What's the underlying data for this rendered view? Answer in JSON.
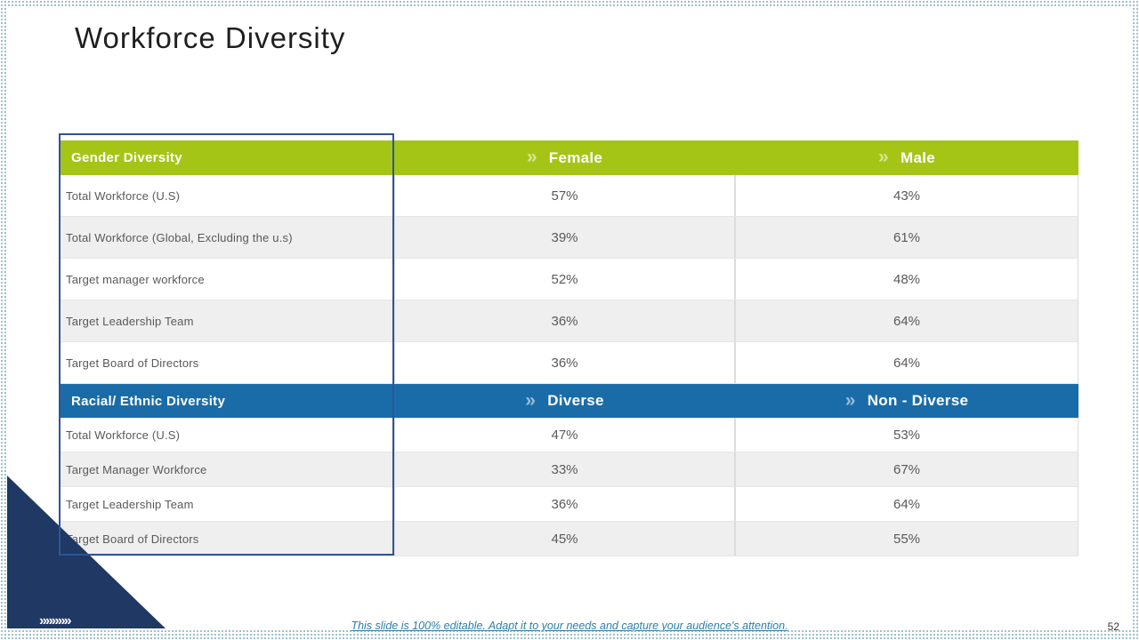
{
  "slide": {
    "title": "Workforce Diversity",
    "footer_note": "This slide is 100% editable. Adapt it to your needs and capture your audience's attention.",
    "page_number": "52"
  },
  "icons": {
    "chevron": "»",
    "corner_chevrons": "»»»»»"
  },
  "colors": {
    "gender_header": "#a5c516",
    "racial_header": "#1a6ca8",
    "corner_triangle": "#1f3864",
    "left_column_outline": "#2f5496",
    "row_stripe": "#efefef",
    "body_text": "#595959",
    "footer_text": "#2e7ea8"
  },
  "tables": [
    {
      "title": "Gender Diversity",
      "columns": [
        "Female",
        "Male"
      ],
      "rows": [
        {
          "label": "Total Workforce (U.S)",
          "values": [
            "57%",
            "43%"
          ]
        },
        {
          "label": "Total Workforce (Global, Excluding the u.s)",
          "values": [
            "39%",
            "61%"
          ]
        },
        {
          "label": "Target manager workforce",
          "values": [
            "52%",
            "48%"
          ]
        },
        {
          "label": "Target Leadership Team",
          "values": [
            "36%",
            "64%"
          ]
        },
        {
          "label": "Target Board of Directors",
          "values": [
            "36%",
            "64%"
          ]
        }
      ]
    },
    {
      "title": "Racial/ Ethnic Diversity",
      "columns": [
        "Diverse",
        "Non - Diverse"
      ],
      "rows": [
        {
          "label": "Total Workforce (U.S)",
          "values": [
            "47%",
            "53%"
          ]
        },
        {
          "label": "Target Manager Workforce",
          "values": [
            "33%",
            "67%"
          ]
        },
        {
          "label": "Target Leadership Team",
          "values": [
            "36%",
            "64%"
          ]
        },
        {
          "label": "Target Board of Directors",
          "values": [
            "45%",
            "55%"
          ]
        }
      ]
    }
  ]
}
